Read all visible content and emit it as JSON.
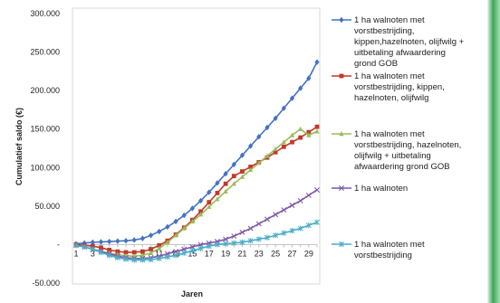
{
  "chart_data": {
    "type": "line",
    "title": "",
    "xlabel": "Jaren",
    "ylabel": "Cumulatief saldo (€)",
    "ylim": [
      -50000,
      300000
    ],
    "yticks": [
      -50000,
      0,
      50000,
      100000,
      150000,
      200000,
      250000,
      300000
    ],
    "ytick_labels": [
      "-50.000",
      "-",
      "50.000",
      "100.000",
      "150.000",
      "200.000",
      "250.000",
      "300.000"
    ],
    "x": [
      1,
      2,
      3,
      4,
      5,
      6,
      7,
      8,
      9,
      10,
      11,
      12,
      13,
      14,
      15,
      16,
      17,
      18,
      19,
      20,
      21,
      22,
      23,
      24,
      25,
      26,
      27,
      28,
      29,
      30
    ],
    "xtick_labels": [
      "1",
      "3",
      "5",
      "7",
      "9",
      "11",
      "13",
      "15",
      "17",
      "19",
      "21",
      "23",
      "25",
      "27",
      "29"
    ],
    "grid": false,
    "legend_position": "right",
    "series": [
      {
        "name": "1 ha walnoten met vorstbestrijding, kippen,hazelnoten, olijfwilg + uitbetaling afwaardering grond GOB",
        "legend_lines": [
          "1 ha walnoten met",
          "vorstbestrijding,",
          "kippen,hazelnoten, olijfwilg +",
          "uitbetaling afwaardering",
          "grond GOB"
        ],
        "color": "#4472c4",
        "marker": "diamond",
        "values": [
          1000,
          2000,
          3000,
          3500,
          4000,
          4500,
          5000,
          6000,
          8000,
          12000,
          17000,
          23000,
          30000,
          38000,
          47000,
          57000,
          68000,
          80000,
          92000,
          104000,
          116000,
          128000,
          140000,
          152000,
          164000,
          177000,
          190000,
          203000,
          216000,
          237000
        ]
      },
      {
        "name": "1 ha walnoten met vorstbestrijding, kippen, hazelnoten, olijfwilg",
        "legend_lines": [
          "1 ha walnoten met",
          "vorstbestrijding, kippen,",
          "hazelnoten, olijfwilg"
        ],
        "color": "#c0392b",
        "marker": "square",
        "values": [
          0,
          -1000,
          -2000,
          -4000,
          -7000,
          -9000,
          -10000,
          -10000,
          -9000,
          -6000,
          -1000,
          5000,
          13000,
          22000,
          32000,
          43000,
          55000,
          67000,
          79000,
          89000,
          95000,
          101000,
          107000,
          113000,
          120000,
          127000,
          133000,
          139000,
          146000,
          153000
        ]
      },
      {
        "name": "1 ha walnoten met vorstbestrijding, hazelnoten, olijfwilg + uitbetaling afwaardering grond GOB",
        "legend_lines": [
          "1 ha walnoten met",
          "vorstbestrijding, hazelnoten,",
          "olijfwilg + uitbetaling",
          "afwaardering grond GOB"
        ],
        "color": "#9bbb59",
        "marker": "triangle",
        "values": [
          -1000,
          -3000,
          -6000,
          -9000,
          -11000,
          -13000,
          -14500,
          -15000,
          -14000,
          -11000,
          -5000,
          3000,
          12000,
          21000,
          30000,
          39000,
          49000,
          59000,
          69000,
          79000,
          88000,
          97000,
          106000,
          115000,
          124000,
          133000,
          142000,
          150000,
          142000,
          147000
        ]
      },
      {
        "name": "1 ha walnoten",
        "legend_lines": [
          "1 ha walnoten"
        ],
        "color": "#7e57a6",
        "marker": "x",
        "values": [
          -1000,
          -3000,
          -6000,
          -9000,
          -12000,
          -15000,
          -17000,
          -18000,
          -18000,
          -17000,
          -15000,
          -12000,
          -9000,
          -6000,
          -3000,
          0,
          2000,
          4000,
          7000,
          11000,
          16000,
          21000,
          27000,
          33000,
          39000,
          45000,
          51000,
          57000,
          64000,
          71000
        ]
      },
      {
        "name": "1 ha walnoten met vorstbestrijding",
        "legend_lines": [
          "1 ha walnoten met",
          "vorstbestrijding"
        ],
        "color": "#4bacc6",
        "marker": "star",
        "values": [
          -1000,
          -3000,
          -6000,
          -10000,
          -14000,
          -17000,
          -19000,
          -20000,
          -20000,
          -19500,
          -18000,
          -16000,
          -14000,
          -11000,
          -8000,
          -5000,
          -2000,
          0,
          1000,
          2000,
          3000,
          5000,
          7000,
          9000,
          12000,
          15000,
          18000,
          21000,
          25000,
          29000
        ]
      }
    ]
  }
}
